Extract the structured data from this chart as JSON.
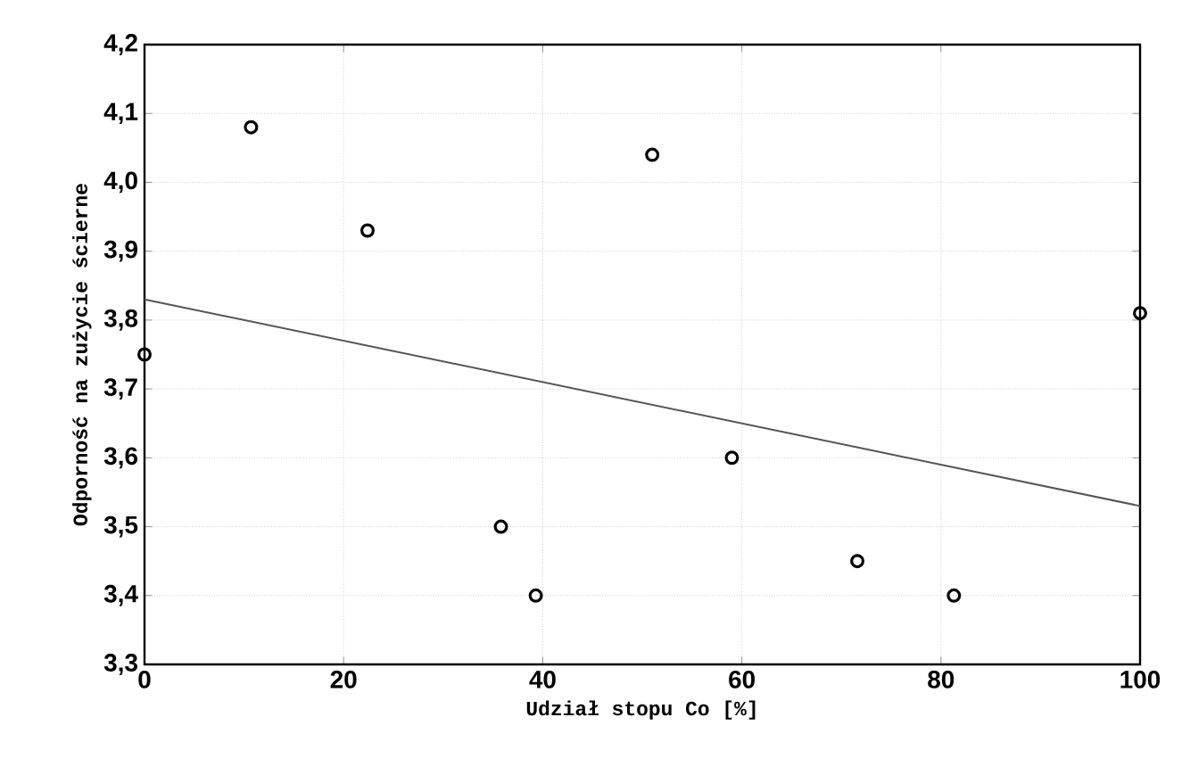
{
  "chart_data": {
    "type": "scatter",
    "xlabel": "Udział stopu Co [%]",
    "ylabel": "Odporność na zużycie ścierne",
    "series": [
      {
        "color": "#000000",
        "marker": "circle",
        "x": [
          0,
          10.7,
          22.4,
          35.8,
          39.3,
          51.0,
          59.0,
          71.6,
          81.3,
          100
        ],
        "values": [
          3.75,
          4.08,
          3.93,
          3.5,
          3.4,
          4.04,
          3.6,
          3.45,
          3.4,
          3.81
        ]
      },
      {
        "type": "line",
        "color": "#555555",
        "marker": "none",
        "x": [
          0,
          100
        ],
        "values": [
          3.83,
          3.53
        ]
      }
    ],
    "xlim": [
      0,
      100
    ],
    "ylim": [
      3.3,
      4.2
    ],
    "xticks": [
      0,
      20,
      40,
      60,
      80,
      100
    ],
    "yticks": [
      {
        "value": 3.3,
        "label": "3,3"
      },
      {
        "value": 3.4,
        "label": "3,4"
      },
      {
        "value": 3.5,
        "label": "3,5"
      },
      {
        "value": 3.6,
        "label": "3,6"
      },
      {
        "value": 3.7,
        "label": "3,7"
      },
      {
        "value": 3.8,
        "label": "3,8"
      },
      {
        "value": 3.9,
        "label": "3,9"
      },
      {
        "value": 4.0,
        "label": "4,0"
      },
      {
        "value": 4.1,
        "label": "4,1"
      },
      {
        "value": 4.2,
        "label": "4,2"
      }
    ],
    "grid": true
  }
}
